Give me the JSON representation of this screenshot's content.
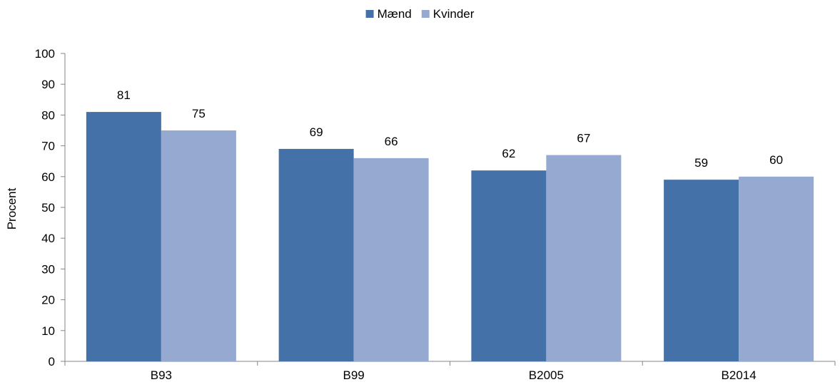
{
  "chart_data": {
    "type": "bar",
    "title": "",
    "xlabel": "",
    "ylabel": "Procent",
    "ylim": [
      0,
      100
    ],
    "yticks": [
      0,
      10,
      20,
      30,
      40,
      50,
      60,
      70,
      80,
      90,
      100
    ],
    "categories": [
      "B93",
      "B99",
      "B2005",
      "B2014"
    ],
    "series": [
      {
        "name": "Mænd",
        "color": "#4472A8",
        "values": [
          81,
          69,
          62,
          59
        ]
      },
      {
        "name": "Kvinder",
        "color": "#95A9D1",
        "values": [
          75,
          66,
          67,
          60
        ]
      }
    ],
    "legend_position": "top-center",
    "grid": false
  }
}
